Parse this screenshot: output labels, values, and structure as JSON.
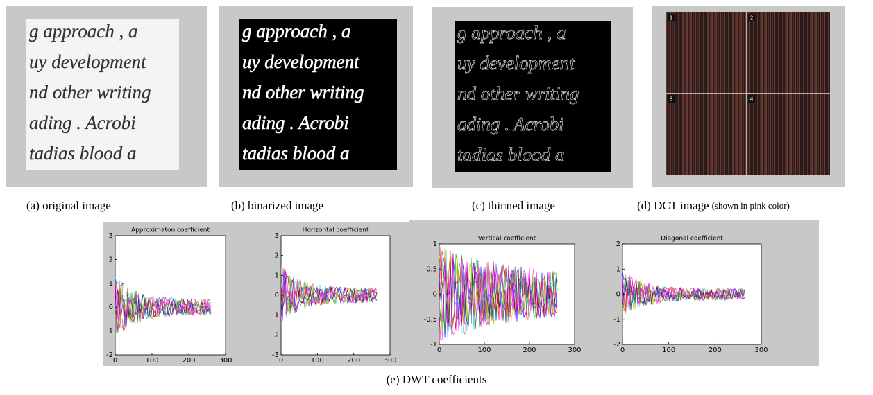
{
  "figure": {
    "images": [
      {
        "caption": "(a) original image",
        "lines": [
          "g approach , a",
          "uy development",
          "nd other writing",
          "ading . Acrobi",
          "tadias blood a"
        ]
      },
      {
        "caption": "(b) binarized image",
        "lines": [
          "g approach , a",
          "uy development",
          "nd other writing",
          "ading . Acrobi",
          "tadias blood a"
        ]
      },
      {
        "caption": "(c)  thinned image",
        "lines": [
          "g approach , a",
          "uy development",
          "nd other writing",
          "ading . Acrobi",
          "tadias blood a"
        ]
      },
      {
        "caption": "(d) DCT image",
        "note": "(shown in pink color)",
        "quadrants": [
          "1",
          "2",
          "3",
          "4"
        ]
      }
    ],
    "dwt": {
      "caption": "(e) DWT coefficients",
      "panels": [
        {
          "title": "Approximaton coefficient",
          "xlim": [
            0,
            300
          ],
          "xticks": [
            0,
            100,
            200,
            300
          ],
          "ylim": [
            -2,
            3
          ],
          "yticks": [
            -2,
            -1,
            0,
            1,
            2,
            3
          ]
        },
        {
          "title": "Horizontal coefficient",
          "xlim": [
            0,
            300
          ],
          "xticks": [
            0,
            100,
            200,
            300
          ],
          "ylim": [
            -3,
            3
          ],
          "yticks": [
            -3,
            -2,
            -1,
            0,
            1,
            2,
            3
          ]
        },
        {
          "title": "Vertical coefficient",
          "xlim": [
            0,
            300
          ],
          "xticks": [
            0,
            100,
            200,
            300
          ],
          "ylim": [
            -1,
            1
          ],
          "yticks": [
            -1,
            -0.5,
            0,
            0.5,
            1
          ]
        },
        {
          "title": "Diagonal coefficient",
          "xlim": [
            0,
            300
          ],
          "xticks": [
            0,
            100,
            200,
            300
          ],
          "ylim": [
            -2,
            2
          ],
          "yticks": [
            -2,
            -1,
            0,
            1,
            2
          ]
        }
      ]
    }
  }
}
